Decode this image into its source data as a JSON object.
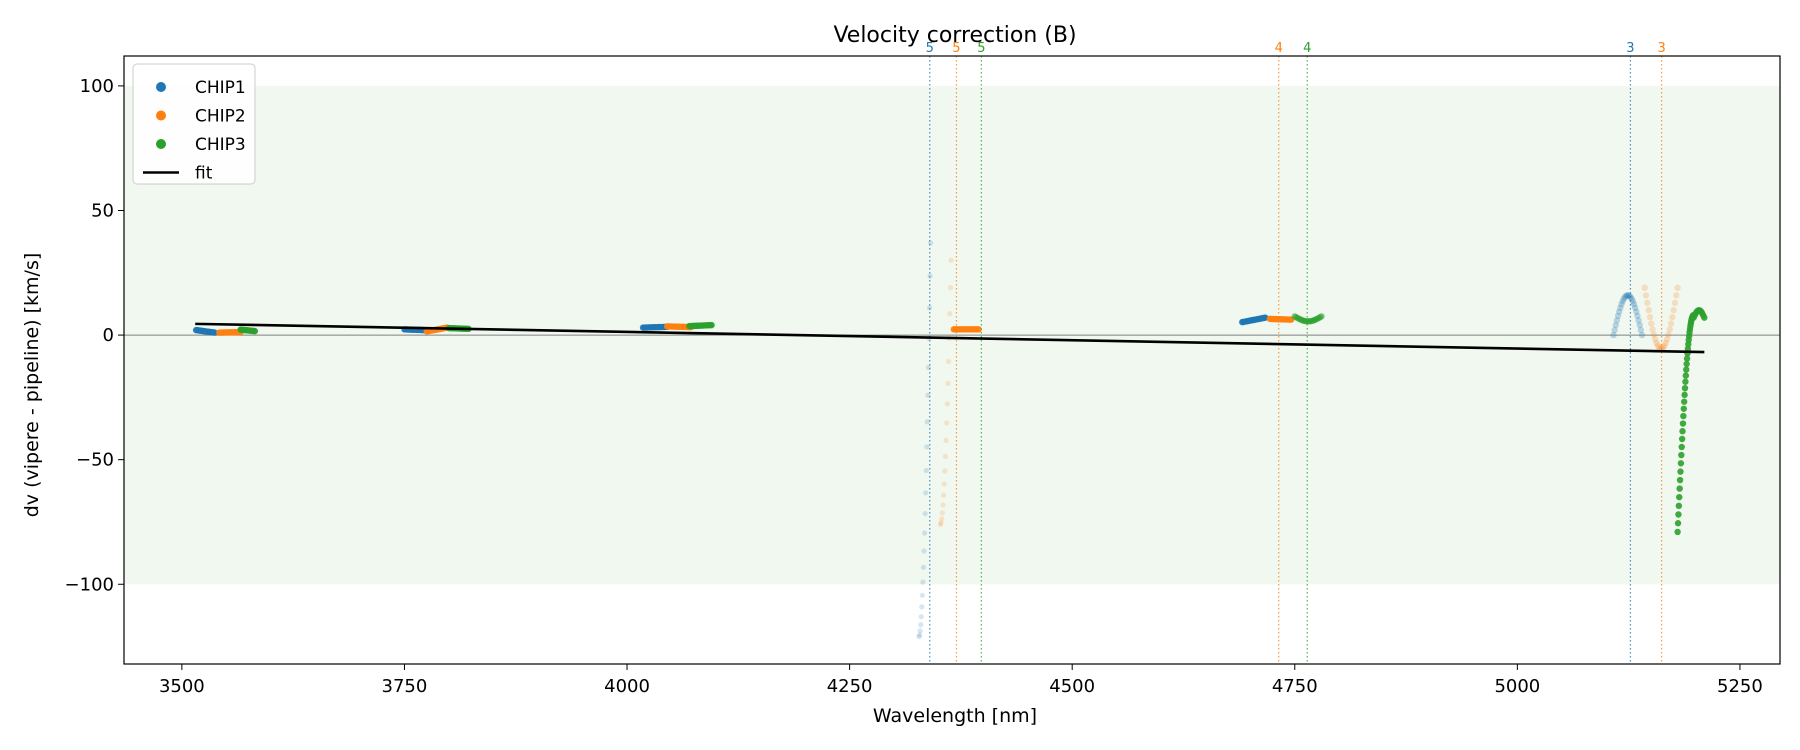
{
  "chart_data": {
    "type": "scatter",
    "title": "Velocity correction (B)",
    "xlabel": "Wavelength [nm]",
    "ylabel": "dv (vipere - pipeline) [km/s]",
    "xlim": [
      3435,
      5295
    ],
    "ylim": [
      -132,
      112
    ],
    "xticks": [
      3500,
      3750,
      4000,
      4250,
      4500,
      4750,
      5000,
      5250
    ],
    "xtick_labels": [
      "3500",
      "3750",
      "4000",
      "4250",
      "4500",
      "4750",
      "5000",
      "5250"
    ],
    "yticks": [
      100,
      50,
      0,
      -50,
      -100
    ],
    "ytick_labels": [
      "100",
      "50",
      "0",
      "−50",
      "−100"
    ],
    "band": {
      "y0": -100,
      "y1": 100,
      "color": "#2ca02c",
      "opacity": 0.07
    },
    "zero_line": {
      "y": 0,
      "color": "#808080"
    },
    "legend": {
      "position": "upper left",
      "entries": [
        {
          "label": "CHIP1",
          "kind": "marker",
          "color": "#1f77b4"
        },
        {
          "label": "CHIP2",
          "kind": "marker",
          "color": "#ff7f0e"
        },
        {
          "label": "CHIP3",
          "kind": "marker",
          "color": "#2ca02c"
        },
        {
          "label": "fit",
          "kind": "line",
          "color": "#000000"
        }
      ]
    },
    "fit": {
      "x": [
        3515,
        5210
      ],
      "y": [
        4.5,
        -6.8
      ],
      "color": "#000000"
    },
    "order_markers": [
      {
        "x": 4340,
        "label": "5",
        "color": "#1f77b4"
      },
      {
        "x": 4370,
        "label": "5",
        "color": "#ff7f0e"
      },
      {
        "x": 4398,
        "label": "5",
        "color": "#2ca02c"
      },
      {
        "x": 4732,
        "label": "4",
        "color": "#ff7f0e"
      },
      {
        "x": 4764,
        "label": "4",
        "color": "#2ca02c"
      },
      {
        "x": 5127,
        "label": "3",
        "color": "#1f77b4"
      },
      {
        "x": 5162,
        "label": "3",
        "color": "#ff7f0e"
      }
    ],
    "series": [
      {
        "name": "CHIP1",
        "color": "#1f77b4",
        "segments": [
          {
            "shape": "line",
            "x0": 3516,
            "x1": 3537,
            "y0": 2.0,
            "y1": 1.0,
            "n": 20,
            "alpha": 0.9
          },
          {
            "shape": "line",
            "x0": 3750,
            "x1": 3772,
            "y0": 2.3,
            "y1": 2.0,
            "n": 18,
            "alpha": 0.9
          },
          {
            "shape": "line",
            "x0": 4018,
            "x1": 4045,
            "y0": 3.0,
            "y1": 3.3,
            "n": 20,
            "alpha": 0.9
          },
          {
            "shape": "spike",
            "x0": 4328,
            "x1": 4341,
            "y0": -121,
            "y1": 37,
            "n": 22,
            "alpha": 0.18
          },
          {
            "shape": "line",
            "x0": 4691,
            "x1": 4717,
            "y0": 5.2,
            "y1": 7.0,
            "n": 20,
            "alpha": 0.9
          },
          {
            "shape": "arc",
            "x0": 5108,
            "x1": 5140,
            "yedge": 0.0,
            "ypeak": 16.0,
            "n": 26,
            "alpha": 0.28
          }
        ]
      },
      {
        "name": "CHIP2",
        "color": "#ff7f0e",
        "segments": [
          {
            "shape": "line",
            "x0": 3542,
            "x1": 3566,
            "y0": 1.0,
            "y1": 1.2,
            "n": 18,
            "alpha": 0.9
          },
          {
            "shape": "line",
            "x0": 3775,
            "x1": 3798,
            "y0": 1.5,
            "y1": 3.0,
            "n": 18,
            "alpha": 0.9
          },
          {
            "shape": "line",
            "x0": 4045,
            "x1": 4072,
            "y0": 3.5,
            "y1": 3.2,
            "n": 20,
            "alpha": 0.9
          },
          {
            "shape": "spike",
            "x0": 4352,
            "x1": 4364,
            "y0": -76,
            "y1": 30,
            "n": 18,
            "alpha": 0.18
          },
          {
            "shape": "line",
            "x0": 4367,
            "x1": 4395,
            "y0": 2.3,
            "y1": 2.3,
            "n": 20,
            "alpha": 0.9
          },
          {
            "shape": "line",
            "x0": 4722,
            "x1": 4746,
            "y0": 6.5,
            "y1": 6.2,
            "n": 18,
            "alpha": 0.9
          },
          {
            "shape": "arc",
            "x0": 5143,
            "x1": 5180,
            "yedge": 19.0,
            "ypeak": -5.5,
            "n": 26,
            "alpha": 0.22
          }
        ]
      },
      {
        "name": "CHIP3",
        "color": "#2ca02c",
        "segments": [
          {
            "shape": "line",
            "x0": 3566,
            "x1": 3582,
            "y0": 2.2,
            "y1": 1.6,
            "n": 16,
            "alpha": 0.9
          },
          {
            "shape": "line",
            "x0": 3800,
            "x1": 3822,
            "y0": 2.8,
            "y1": 2.5,
            "n": 16,
            "alpha": 0.9
          },
          {
            "shape": "line",
            "x0": 4070,
            "x1": 4095,
            "y0": 3.6,
            "y1": 4.0,
            "n": 18,
            "alpha": 0.9
          },
          {
            "shape": "arc",
            "x0": 4750,
            "x1": 4780,
            "yedge": 7.5,
            "ypeak": 5.5,
            "n": 18,
            "alpha": 0.6
          },
          {
            "shape": "curve",
            "x0": 5180,
            "x1": 5198,
            "y0": -79,
            "y1": 8.0,
            "n": 40,
            "alpha": 0.9
          },
          {
            "shape": "arc",
            "x0": 5198,
            "x1": 5210,
            "yedge": 7.0,
            "ypeak": 10.0,
            "n": 10,
            "alpha": 0.9
          }
        ]
      }
    ]
  }
}
